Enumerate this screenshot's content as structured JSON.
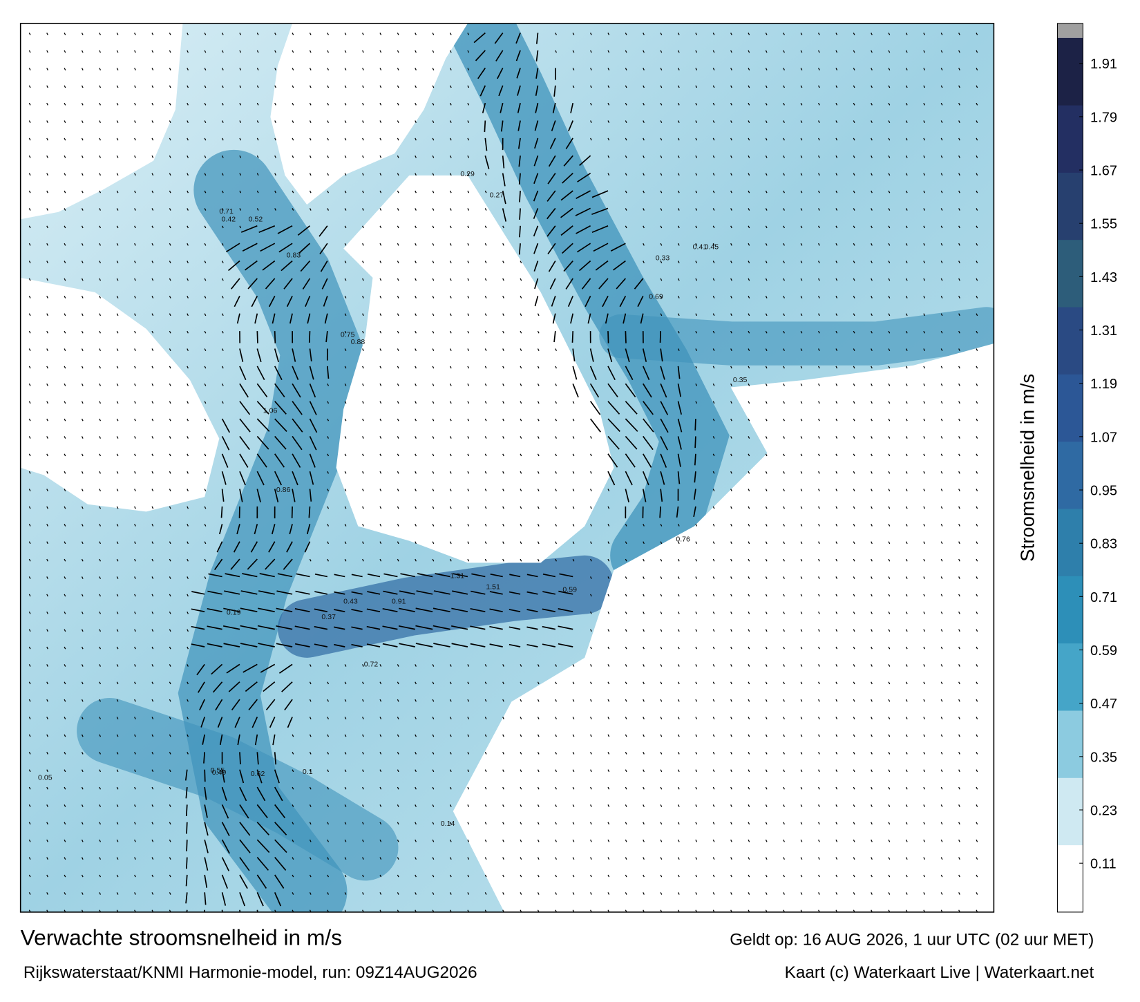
{
  "header": {
    "title": "Verwachte stroomsnelheid in m/s",
    "source": "Rijkswaterstaat/KNMI Harmonie-model, run: 09Z14AUG2026",
    "valid": "Geldt op: 16 AUG 2026, 1 uur UTC (02 uur MET)",
    "credit": "Kaart (c) Waterkaart Live | Waterkaart.net"
  },
  "colorbar": {
    "label": "Stroomsnelheid in m/s",
    "ylim": [
      0,
      2
    ],
    "yticks": [
      0.11,
      0.23,
      0.35,
      0.47,
      0.59,
      0.71,
      0.83,
      0.95,
      1.07,
      1.19,
      1.31,
      1.43,
      1.55,
      1.67,
      1.79,
      1.91
    ],
    "colors": [
      "#ffffff",
      "#cfe9f2",
      "#8ccbe0",
      "#45a5c8",
      "#2d8fb8",
      "#2e7fab",
      "#2f6aa3",
      "#2c5796",
      "#2a4a83",
      "#2d5d7a",
      "#27406f",
      "#232f62",
      "#1c2246"
    ],
    "top_color": "#a0a0a0"
  },
  "current_labels": [
    "0.83",
    "0.71",
    "0.42",
    "0.52",
    "0.75",
    "0.88",
    "1.06",
    "0.86",
    "0.43",
    "0.91",
    "1.51",
    "1.31",
    "0.72",
    "0.59",
    "0.62",
    "0.49",
    "0.55",
    "0.29",
    "0.33",
    "0.37",
    "0.41",
    "0.45",
    "0.69",
    "0.76",
    "0.05",
    "0.1",
    "0.14",
    "0.19",
    "0.27",
    "0.35"
  ]
}
